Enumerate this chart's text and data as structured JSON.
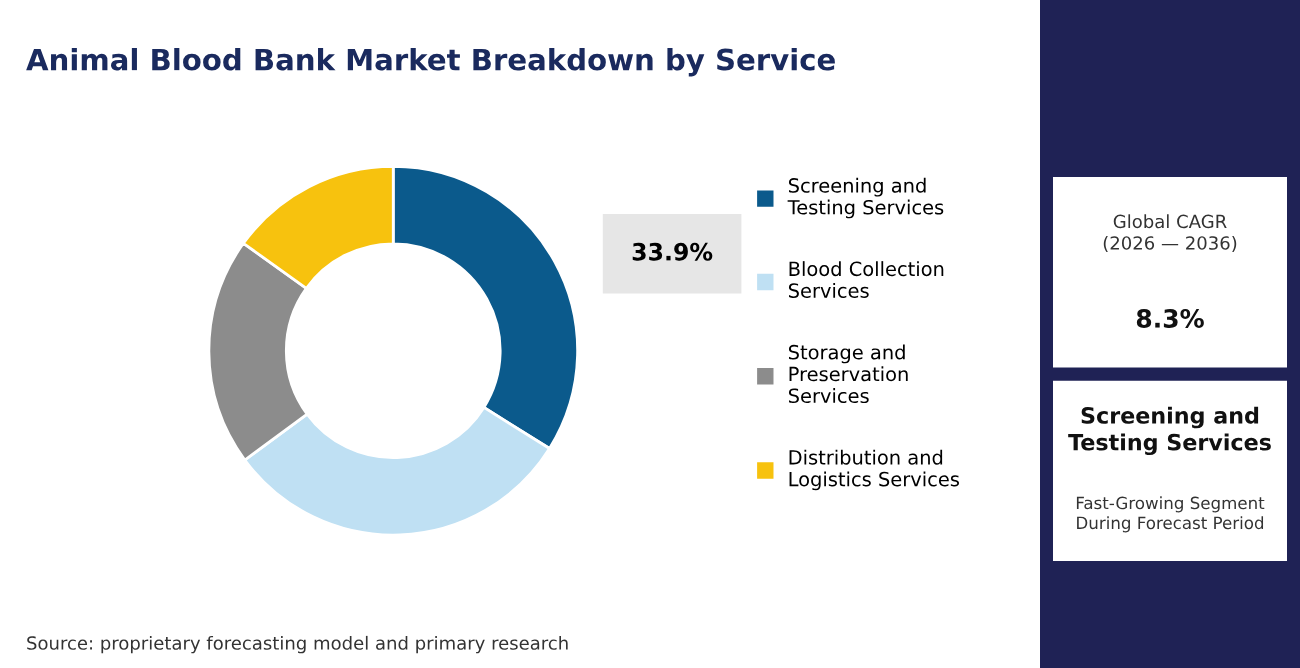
{
  "chart_data": {
    "type": "donut",
    "title": "Animal Blood Bank Market Breakdown by Service",
    "categories": [
      "Screening and\nTesting Services",
      "Blood Collection\nServices",
      "Storage and\nPreservation\nServices",
      "Distribution and\nLogistics Services"
    ],
    "values": [
      33.9,
      31,
      20,
      15.1
    ],
    "colors": [
      "#0b5a8c",
      "#bfe0f3",
      "#8c8c8c",
      "#f7c20e"
    ],
    "value_labels": [
      "33.9%",
      null,
      null,
      null
    ],
    "legend": "right",
    "annotations": [
      "Source: proprietary forecasting model and primary research",
      "Global CAGR\n(2026 — 2036)",
      "8.3%",
      "Screening and\nTesting Services",
      "Fast-Growing Segment\nDuring Forecast Period"
    ]
  }
}
